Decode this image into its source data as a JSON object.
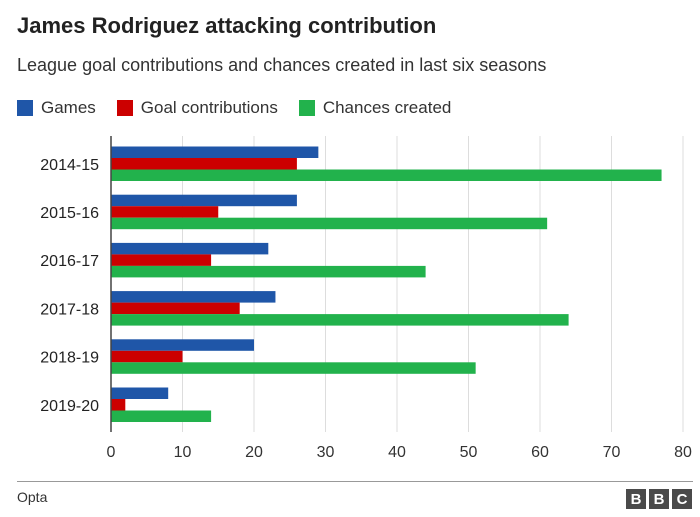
{
  "chart_data": {
    "type": "bar",
    "orientation": "horizontal",
    "title": "James Rodriguez attacking contribution",
    "subtitle": "League goal contributions and chances created in last six seasons",
    "categories": [
      "2014-15",
      "2015-16",
      "2016-17",
      "2017-18",
      "2018-19",
      "2019-20"
    ],
    "series": [
      {
        "name": "Games",
        "color": "#1f56a8",
        "values": [
          29,
          26,
          22,
          23,
          20,
          8
        ]
      },
      {
        "name": "Goal contributions",
        "color": "#cc0000",
        "values": [
          26,
          15,
          14,
          18,
          10,
          2
        ]
      },
      {
        "name": "Chances created",
        "color": "#22b24c",
        "values": [
          77,
          61,
          44,
          64,
          51,
          14
        ]
      }
    ],
    "xlim": [
      0,
      80
    ],
    "xticks": [
      "0",
      "10",
      "20",
      "30",
      "40",
      "50",
      "60",
      "70",
      "80"
    ],
    "grid": true,
    "legend": "top-left"
  },
  "footer": {
    "source": "Opta",
    "logo_letters": [
      "B",
      "B",
      "C"
    ]
  }
}
